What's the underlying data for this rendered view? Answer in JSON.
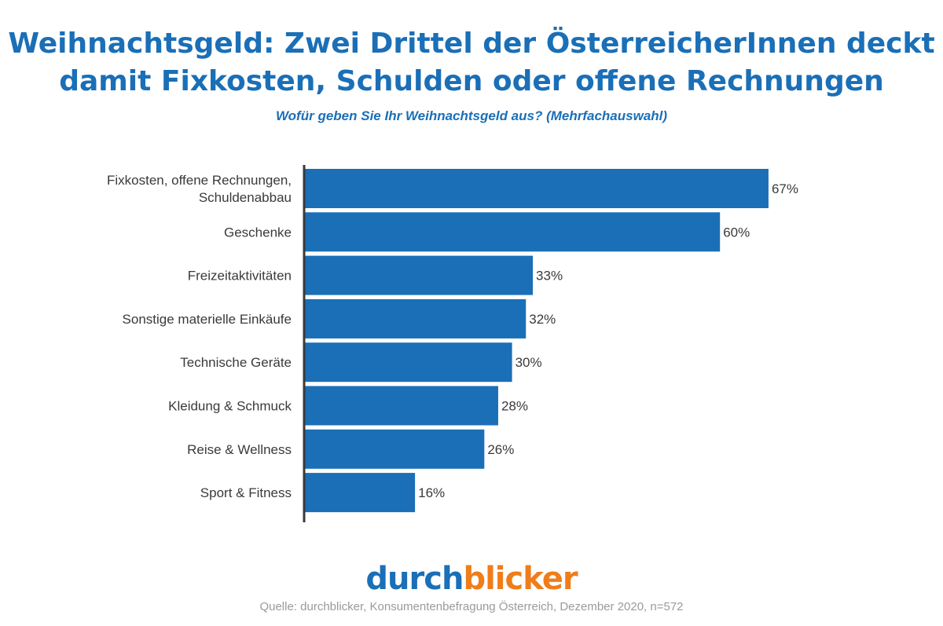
{
  "title_line1": "Weihnachtsgeld: Zwei Drittel der ÖsterreicherInnen deckt",
  "title_line2": "damit Fixkosten, Schulden oder offene Rechnungen",
  "subtitle": "Wofür geben Sie Ihr Weihnachtsgeld aus? (Mehrfachauswahl)",
  "logo": {
    "part1": "durch",
    "part2": "blicker"
  },
  "source": "Quelle: durchblicker, Konsumentenbefragung Österreich, Dezember 2020, n=572",
  "colors": {
    "bar": "#1a6fb7",
    "title": "#1a6fb7",
    "logo_primary": "#1a6fb7",
    "logo_accent": "#ef7d1a",
    "axis": "#3a3a3a",
    "label": "#3a3a3a"
  },
  "chart_data": {
    "type": "bar",
    "orientation": "horizontal",
    "categories": [
      [
        "Fixkosten, offene Rechnungen,",
        "Schuldenabbau"
      ],
      [
        "Geschenke"
      ],
      [
        "Freizeitaktivitäten"
      ],
      [
        "Sonstige materielle Einkäufe"
      ],
      [
        "Technische Geräte"
      ],
      [
        "Kleidung & Schmuck"
      ],
      [
        "Reise & Wellness"
      ],
      [
        "Sport & Fitness"
      ]
    ],
    "values": [
      67,
      60,
      33,
      32,
      30,
      28,
      26,
      16
    ],
    "value_labels": [
      "67%",
      "60%",
      "33%",
      "32%",
      "30%",
      "28%",
      "26%",
      "16%"
    ],
    "unit": "%",
    "xlim": [
      0,
      100
    ],
    "grid": false,
    "legend": "none"
  }
}
